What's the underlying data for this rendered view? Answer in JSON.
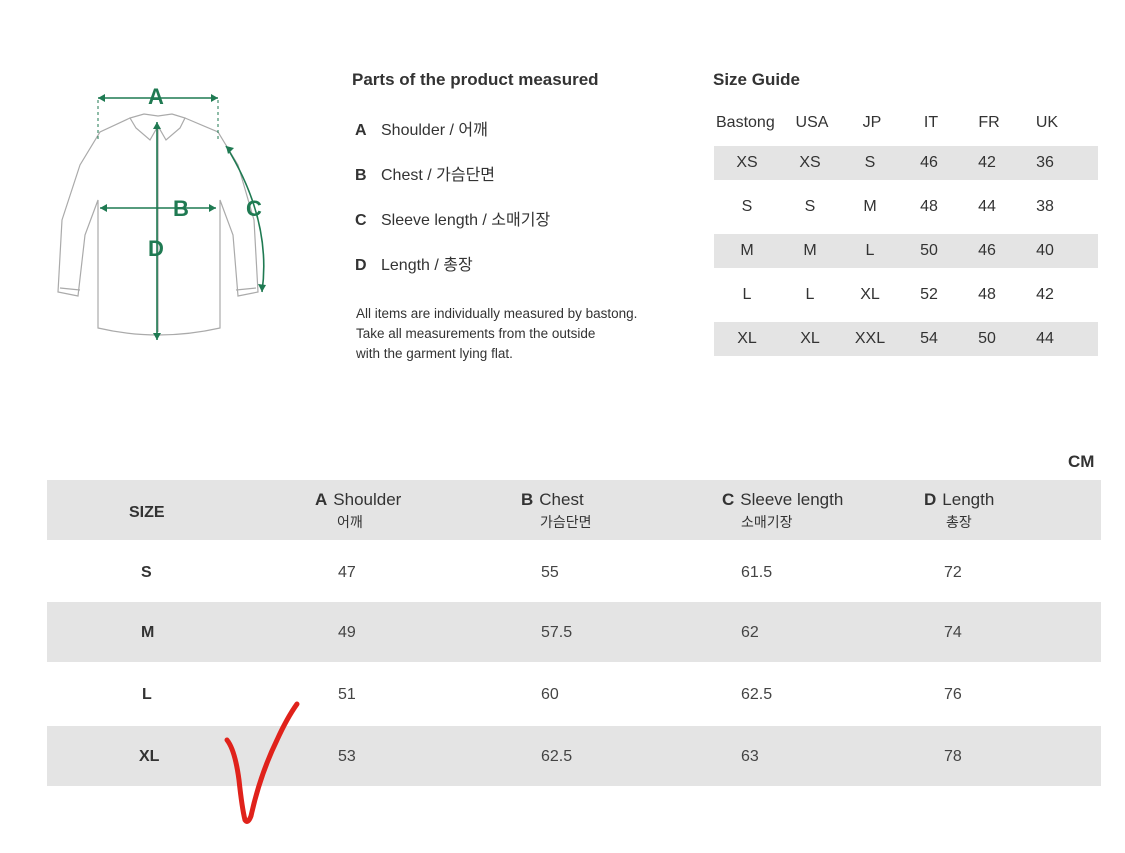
{
  "diagram": {
    "labels": [
      "A",
      "B",
      "C",
      "D"
    ],
    "accent_color": "#1f7a52",
    "outline_color": "#aaaaaa"
  },
  "parts": {
    "title": "Parts of the product measured",
    "items": [
      {
        "letter": "A",
        "label": "Shoulder / 어깨"
      },
      {
        "letter": "B",
        "label": "Chest / 가슴단면"
      },
      {
        "letter": "C",
        "label": "Sleeve length / 소매기장"
      },
      {
        "letter": "D",
        "label": "Length / 총장"
      }
    ],
    "note": [
      "All items are individually measured by bastong.",
      "Take all measurements from the outside",
      "with the garment lying flat."
    ]
  },
  "size_guide": {
    "title": "Size Guide",
    "headers": [
      "Bastong",
      "USA",
      "JP",
      "IT",
      "FR",
      "UK"
    ],
    "rows": [
      [
        "XS",
        "XS",
        "S",
        "46",
        "42",
        "36"
      ],
      [
        "S",
        "S",
        "M",
        "48",
        "44",
        "38"
      ],
      [
        "M",
        "M",
        "L",
        "50",
        "46",
        "40"
      ],
      [
        "L",
        "L",
        "XL",
        "52",
        "48",
        "42"
      ],
      [
        "XL",
        "XL",
        "XXL",
        "54",
        "50",
        "44"
      ]
    ],
    "shade_color": "#e4e4e4"
  },
  "measurements": {
    "unit": "CM",
    "size_header": "SIZE",
    "columns": [
      {
        "letter": "A",
        "name": "Shoulder",
        "kr": "어깨"
      },
      {
        "letter": "B",
        "name": "Chest",
        "kr": "가슴단면"
      },
      {
        "letter": "C",
        "name": "Sleeve length",
        "kr": "소매기장"
      },
      {
        "letter": "D",
        "name": "Length",
        "kr": "총장"
      }
    ],
    "rows": [
      {
        "size": "S",
        "values": [
          "47",
          "55",
          "61.5",
          "72"
        ]
      },
      {
        "size": "M",
        "values": [
          "49",
          "57.5",
          "62",
          "74"
        ]
      },
      {
        "size": "L",
        "values": [
          "51",
          "60",
          "62.5",
          "76"
        ]
      },
      {
        "size": "XL",
        "values": [
          "53",
          "62.5",
          "63",
          "78"
        ]
      }
    ]
  },
  "annotation": {
    "mark": "check-mark",
    "color": "#e0221b"
  }
}
